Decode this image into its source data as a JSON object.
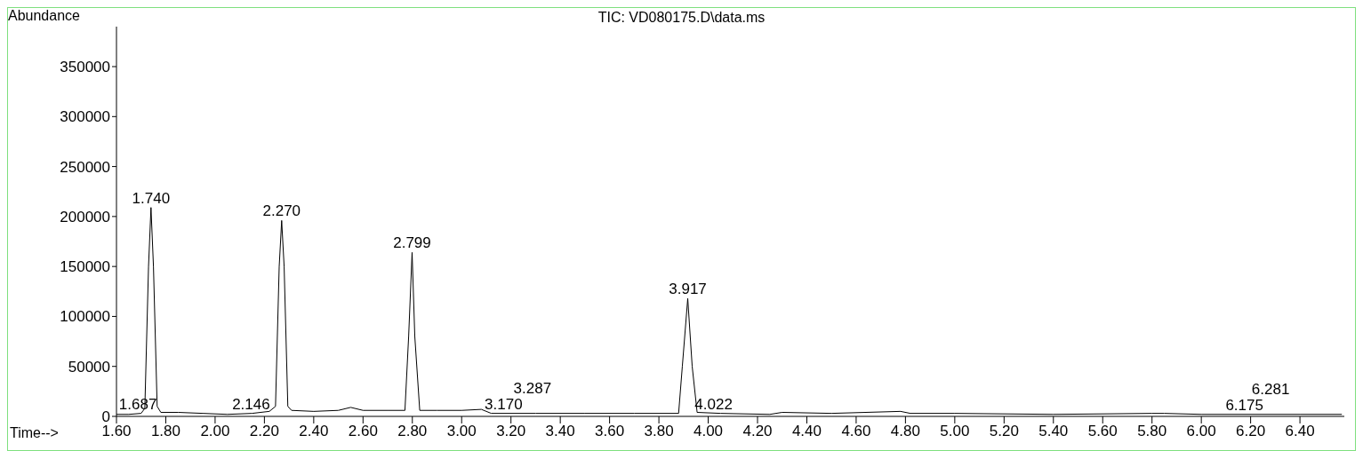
{
  "chart_data": {
    "type": "line",
    "title": "TIC: VD080175.D\\data.ms",
    "xlabel": "Time-->",
    "ylabel": "Abundance",
    "x": [
      1.6,
      1.65,
      1.7,
      1.715,
      1.73,
      1.74,
      1.75,
      1.765,
      1.78,
      1.85,
      1.95,
      2.05,
      2.15,
      2.22,
      2.245,
      2.26,
      2.27,
      2.28,
      2.295,
      2.31,
      2.4,
      2.5,
      2.55,
      2.6,
      2.7,
      2.77,
      2.785,
      2.799,
      2.81,
      2.83,
      2.9,
      3.0,
      3.08,
      3.12,
      3.3,
      3.5,
      3.7,
      3.88,
      3.895,
      3.917,
      3.935,
      3.955,
      4.05,
      4.25,
      4.3,
      4.5,
      4.78,
      4.82,
      5.0,
      5.4,
      5.8,
      5.85,
      6.0,
      6.4,
      6.57
    ],
    "series": [
      {
        "color": "#000000",
        "values": [
          2000,
          2000,
          3000,
          8000,
          150000,
          209000,
          150000,
          10000,
          4000,
          4000,
          3000,
          2000,
          3000,
          5000,
          10000,
          150000,
          196000,
          150000,
          10000,
          6000,
          5000,
          6000,
          9000,
          6000,
          6000,
          6000,
          80000,
          164000,
          80000,
          6000,
          6000,
          6000,
          7000,
          3000,
          3000,
          3000,
          3000,
          3000,
          50000,
          118000,
          50000,
          4000,
          3000,
          2000,
          4000,
          3000,
          5000,
          3000,
          3000,
          2000,
          3000,
          3000,
          2000,
          2000,
          2000
        ]
      }
    ],
    "xlim": [
      1.6,
      6.58
    ],
    "ylim": [
      0,
      390000
    ],
    "xticks": [
      {
        "value": 1.6,
        "label": "1.60"
      },
      {
        "value": 1.8,
        "label": "1.80"
      },
      {
        "value": 2.0,
        "label": "2.00"
      },
      {
        "value": 2.2,
        "label": "2.20"
      },
      {
        "value": 2.4,
        "label": "2.40"
      },
      {
        "value": 2.6,
        "label": "2.60"
      },
      {
        "value": 2.8,
        "label": "2.80"
      },
      {
        "value": 3.0,
        "label": "3.00"
      },
      {
        "value": 3.2,
        "label": "3.20"
      },
      {
        "value": 3.4,
        "label": "3.40"
      },
      {
        "value": 3.6,
        "label": "3.60"
      },
      {
        "value": 3.8,
        "label": "3.80"
      },
      {
        "value": 4.0,
        "label": "4.00"
      },
      {
        "value": 4.2,
        "label": "4.20"
      },
      {
        "value": 4.4,
        "label": "4.40"
      },
      {
        "value": 4.6,
        "label": "4.60"
      },
      {
        "value": 4.8,
        "label": "4.80"
      },
      {
        "value": 5.0,
        "label": "5.00"
      },
      {
        "value": 5.2,
        "label": "5.20"
      },
      {
        "value": 5.4,
        "label": "5.40"
      },
      {
        "value": 5.6,
        "label": "5.60"
      },
      {
        "value": 5.8,
        "label": "5.80"
      },
      {
        "value": 6.0,
        "label": "6.00"
      },
      {
        "value": 6.2,
        "label": "6.20"
      },
      {
        "value": 6.4,
        "label": "6.40"
      }
    ],
    "yticks": [
      0,
      50000,
      100000,
      150000,
      200000,
      250000,
      300000,
      350000
    ],
    "annotations": [
      {
        "text": "1.687",
        "x": 1.687,
        "y": 3000
      },
      {
        "text": "1.740",
        "x": 1.74,
        "y": 209000
      },
      {
        "text": "2.146",
        "x": 2.146,
        "y": 3000
      },
      {
        "text": "2.270",
        "x": 2.27,
        "y": 196000
      },
      {
        "text": "2.799",
        "x": 2.799,
        "y": 164000
      },
      {
        "text": "3.170",
        "x": 3.17,
        "y": 3000
      },
      {
        "text": "3.287",
        "x": 3.287,
        "y": 2500
      },
      {
        "text": "3.917",
        "x": 3.917,
        "y": 118000
      },
      {
        "text": "4.022",
        "x": 4.022,
        "y": 3000
      },
      {
        "text": "6.175",
        "x": 6.175,
        "y": 2000
      },
      {
        "text": "6.281",
        "x": 6.281,
        "y": 2000
      }
    ]
  }
}
